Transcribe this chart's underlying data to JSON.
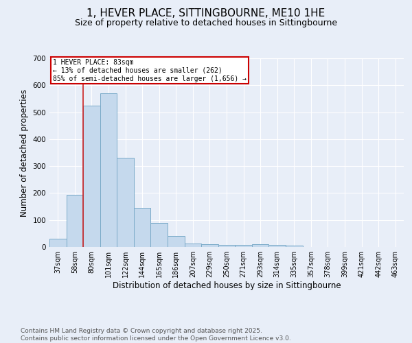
{
  "title": "1, HEVER PLACE, SITTINGBOURNE, ME10 1HE",
  "subtitle": "Size of property relative to detached houses in Sittingbourne",
  "xlabel": "Distribution of detached houses by size in Sittingbourne",
  "ylabel": "Number of detached properties",
  "categories": [
    "37sqm",
    "58sqm",
    "80sqm",
    "101sqm",
    "122sqm",
    "144sqm",
    "165sqm",
    "186sqm",
    "207sqm",
    "229sqm",
    "250sqm",
    "271sqm",
    "293sqm",
    "314sqm",
    "335sqm",
    "357sqm",
    "378sqm",
    "399sqm",
    "421sqm",
    "442sqm",
    "463sqm"
  ],
  "values": [
    30,
    193,
    525,
    570,
    330,
    145,
    88,
    40,
    12,
    10,
    7,
    7,
    10,
    7,
    5,
    0,
    0,
    0,
    0,
    0,
    0
  ],
  "bar_color": "#c5d9ed",
  "bar_edge_color": "#7aaac8",
  "vline_color": "#cc2222",
  "annotation_text": "1 HEVER PLACE: 83sqm\n← 13% of detached houses are smaller (262)\n85% of semi-detached houses are larger (1,656) →",
  "annotation_box_color": "white",
  "annotation_box_edgecolor": "#cc0000",
  "ylim": [
    0,
    700
  ],
  "yticks": [
    0,
    100,
    200,
    300,
    400,
    500,
    600,
    700
  ],
  "footnote": "Contains HM Land Registry data © Crown copyright and database right 2025.\nContains public sector information licensed under the Open Government Licence v3.0.",
  "background_color": "#e8eef8",
  "grid_color": "white",
  "title_fontsize": 11,
  "subtitle_fontsize": 9,
  "tick_fontsize": 7,
  "label_fontsize": 8.5,
  "footnote_fontsize": 6.5
}
